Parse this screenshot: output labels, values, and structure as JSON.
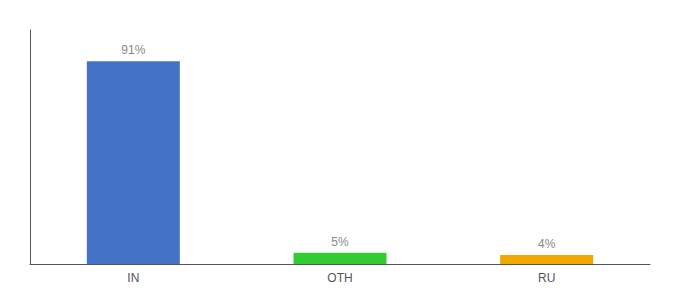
{
  "chart_data": {
    "type": "bar",
    "categories": [
      "IN",
      "OTH",
      "RU"
    ],
    "values": [
      91,
      5,
      4
    ],
    "value_labels": [
      "91%",
      "5%",
      "4%"
    ],
    "data_labels": true,
    "colors": [
      "#4472c4",
      "#33cc33",
      "#f0a800"
    ],
    "ylim": [
      0,
      105
    ],
    "yticks": [],
    "tick_labels": "x",
    "grid": false
  }
}
